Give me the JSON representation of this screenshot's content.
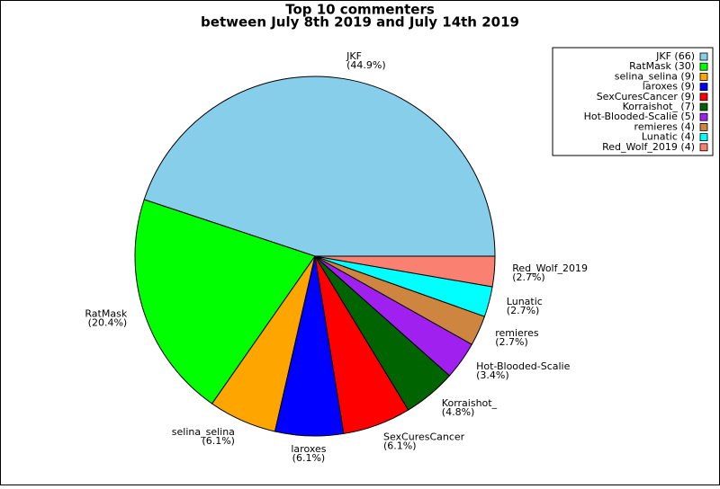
{
  "chart_data": {
    "type": "pie",
    "title": "Top 10 commenters",
    "subtitle": "between July 8th 2019 and July 14th 2019",
    "categories": [
      "JKF",
      "RatMask",
      "selina_selina",
      "laroxes",
      "SexCuresCancer",
      "Korraishot_",
      "Hot-Blooded-Scalie",
      "remieres",
      "Lunatic",
      "Red_Wolf_2019"
    ],
    "values": [
      66,
      30,
      9,
      9,
      9,
      7,
      5,
      4,
      4,
      4
    ],
    "legend_labels": [
      "JKF (66)",
      "RatMask (30)",
      "selina_selina (9)",
      "laroxes (9)",
      "SexCuresCancer (9)",
      "Korraishot_ (7)",
      "Hot-Blooded-Scalie (5)",
      "remieres (4)",
      "Lunatic (4)",
      "Red_Wolf_2019 (4)"
    ],
    "percentages": [
      44.9,
      20.4,
      6.1,
      6.1,
      6.1,
      4.8,
      3.4,
      2.7,
      2.7,
      2.7
    ],
    "percentage_labels": [
      "(44.9%)",
      "(20.4%)",
      "(6.1%)",
      "(6.1%)",
      "(6.1%)",
      "(4.8%)",
      "(3.4%)",
      "(2.7%)",
      "(2.7%)",
      "(2.7%)"
    ],
    "colors": [
      "#87ceeb",
      "#00ff00",
      "#ffa500",
      "#0000ff",
      "#ff0000",
      "#006400",
      "#a020f0",
      "#cd853f",
      "#00ffff",
      "#fa8072"
    ],
    "legend_position": "upper right"
  }
}
